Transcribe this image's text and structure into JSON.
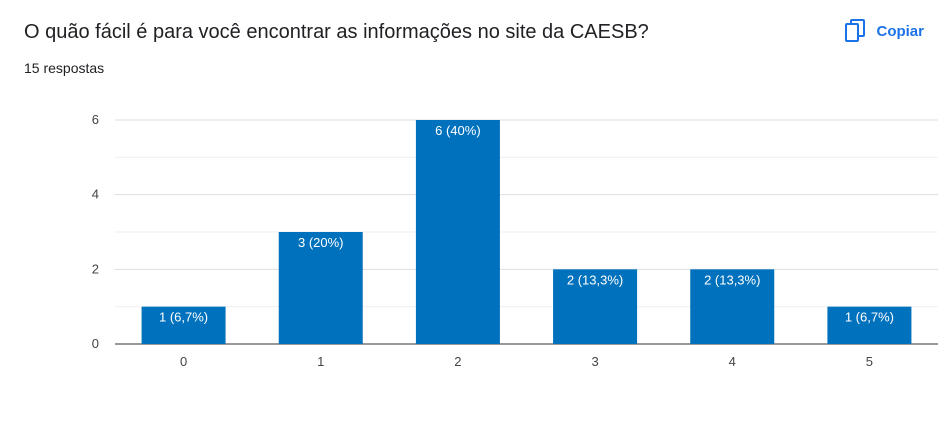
{
  "question": {
    "title": "O quão fácil é para você encontrar as informações no site da CAESB?",
    "responses": "15 respostas"
  },
  "toolbar": {
    "copy_label": "Copiar",
    "copy_icon": "copy-icon"
  },
  "colors": {
    "bar": "#0071bc",
    "accent": "#1a73e8",
    "grid": "#e8e8e8",
    "axis": "#333333"
  },
  "chart_data": {
    "type": "bar",
    "categories": [
      "0",
      "1",
      "2",
      "3",
      "4",
      "5"
    ],
    "values": [
      1,
      3,
      6,
      2,
      2,
      1
    ],
    "data_labels": [
      "1 (6,7%)",
      "3 (20%)",
      "6 (40%)",
      "2 (13,3%)",
      "2 (13,3%)",
      "1 (6,7%)"
    ],
    "ylim": [
      0,
      6
    ],
    "yticks": [
      0,
      2,
      4,
      6
    ],
    "grid": true,
    "title": "",
    "xlabel": "",
    "ylabel": ""
  }
}
